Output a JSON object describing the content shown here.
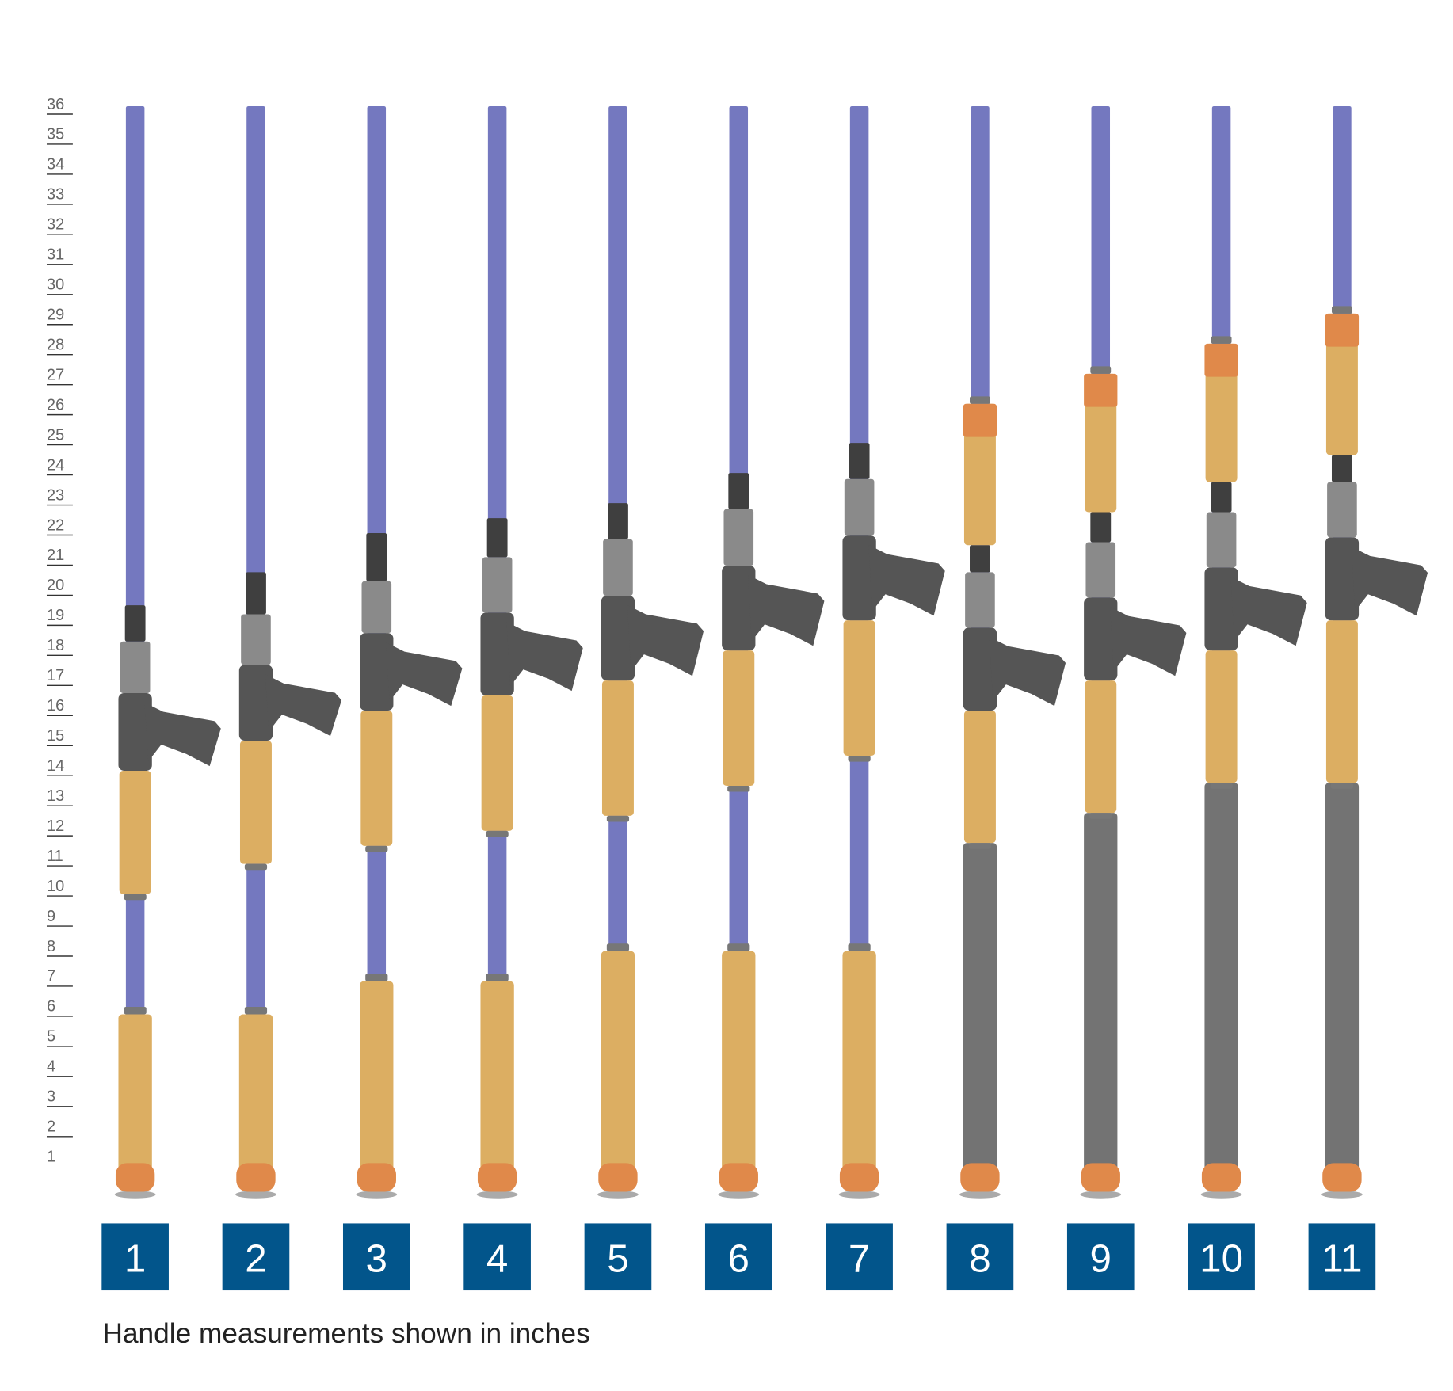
{
  "caption": "Handle measurements shown in inches",
  "ruler": {
    "min": 1,
    "max": 36,
    "unit": "inches"
  },
  "colors": {
    "blank": "#7478bf",
    "cork": "#dcae62",
    "cap": "#e0894a",
    "eva_gray": "#737373",
    "seat_dark": "#555555",
    "seat_light": "#8a8a8a",
    "label_box": "#02558b"
  },
  "rods": [
    {
      "label": "1",
      "rear": "cork",
      "rear_top": 5.9,
      "fore": [
        9.9,
        14.0
      ],
      "seat_top": 18.3,
      "thread_top": 19.5
    },
    {
      "label": "2",
      "rear": "cork",
      "rear_top": 5.9,
      "fore": [
        10.9,
        15.0
      ],
      "seat_top": 19.2,
      "thread_top": 20.6
    },
    {
      "label": "3",
      "rear": "cork",
      "rear_top": 7.0,
      "fore": [
        11.5,
        16.0
      ],
      "seat_top": 20.3,
      "thread_top": 21.9
    },
    {
      "label": "4",
      "rear": "cork",
      "rear_top": 7.0,
      "fore": [
        12.0,
        16.5
      ],
      "seat_top": 21.1,
      "thread_top": 22.4
    },
    {
      "label": "5",
      "rear": "cork",
      "rear_top": 8.0,
      "fore": [
        12.5,
        17.0
      ],
      "seat_top": 21.7,
      "thread_top": 22.9
    },
    {
      "label": "6",
      "rear": "cork",
      "rear_top": 8.0,
      "fore": [
        13.5,
        18.0
      ],
      "seat_top": 22.7,
      "thread_top": 23.9
    },
    {
      "label": "7",
      "rear": "cork",
      "rear_top": 8.0,
      "fore": [
        14.5,
        19.0
      ],
      "seat_top": 23.7,
      "thread_top": 24.9
    },
    {
      "label": "8",
      "rear": "gray",
      "rear_top": 11.6,
      "fore": [
        11.6,
        16.0
      ],
      "seat_top": 20.6,
      "thread_top": 21.5,
      "upper": [
        21.5,
        26.2
      ]
    },
    {
      "label": "9",
      "rear": "gray",
      "rear_top": 12.6,
      "fore": [
        12.6,
        17.0
      ],
      "seat_top": 21.6,
      "thread_top": 22.6,
      "upper": [
        22.6,
        27.2
      ]
    },
    {
      "label": "10",
      "rear": "gray",
      "rear_top": 13.6,
      "fore": [
        13.6,
        18.0
      ],
      "seat_top": 22.6,
      "thread_top": 23.6,
      "upper": [
        23.6,
        28.2
      ]
    },
    {
      "label": "11",
      "rear": "gray",
      "rear_top": 13.6,
      "fore": [
        13.6,
        19.0
      ],
      "seat_top": 23.6,
      "thread_top": 24.5,
      "upper": [
        24.5,
        29.2
      ]
    }
  ]
}
